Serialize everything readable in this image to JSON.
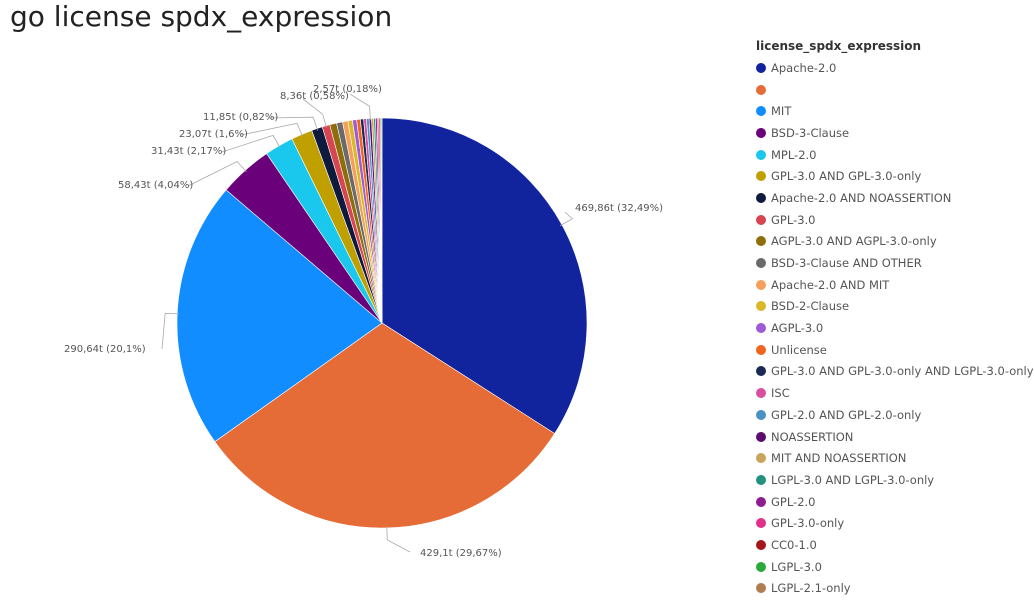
{
  "title": "go license spdx_expression",
  "chart_data": {
    "type": "pie",
    "legend_title": "license_spdx_expression",
    "legend_position": "right",
    "slices": [
      {
        "name": "Apache-2.0",
        "value": 469.86,
        "label": "469,86t (32,49%)",
        "color": "#12239E"
      },
      {
        "name": "",
        "value": 429.1,
        "label": "429,1t (29,67%)",
        "color": "#E66C37"
      },
      {
        "name": "MIT",
        "value": 290.64,
        "label": "290,64t (20,1%)",
        "color": "#118DFF"
      },
      {
        "name": "BSD-3-Clause",
        "value": 58.43,
        "label": "58,43t (4,04%)",
        "color": "#6B007B"
      },
      {
        "name": "MPL-2.0",
        "value": 31.43,
        "label": "31,43t (2,17%)",
        "color": "#1AC8EE"
      },
      {
        "name": "GPL-3.0 AND GPL-3.0-only",
        "value": 23.07,
        "label": "23,07t (1,6%)",
        "color": "#C0A000"
      },
      {
        "name": "Apache-2.0 AND NOASSERTION",
        "value": 11.85,
        "label": "11,85t (0,82%)",
        "color": "#0E1A3E"
      },
      {
        "name": "GPL-3.0",
        "value": 8.36,
        "label": "8,36t (0,58%)",
        "color": "#D64550"
      },
      {
        "name": "AGPL-3.0 AND AGPL-3.0-only",
        "value": 7.5,
        "label": "",
        "color": "#8D6E0B"
      },
      {
        "name": "BSD-3-Clause AND OTHER",
        "value": 6.5,
        "label": "",
        "color": "#6A6A6A"
      },
      {
        "name": "Apache-2.0 AND MIT",
        "value": 5.8,
        "label": "",
        "color": "#F5A05A"
      },
      {
        "name": "BSD-2-Clause",
        "value": 5.0,
        "label": "",
        "color": "#D9B82A"
      },
      {
        "name": "AGPL-3.0",
        "value": 4.5,
        "label": "",
        "color": "#9E5BD6"
      },
      {
        "name": "Unlicense",
        "value": 4.0,
        "label": "",
        "color": "#F0641E"
      },
      {
        "name": "GPL-3.0 AND GPL-3.0-only AND LGPL-3.0-only",
        "value": 3.5,
        "label": "",
        "color": "#1B2A55"
      },
      {
        "name": "ISC",
        "value": 3.1,
        "label": "",
        "color": "#D84FA0"
      },
      {
        "name": "GPL-2.0 AND GPL-2.0-only",
        "value": 2.8,
        "label": "",
        "color": "#4A90C2"
      },
      {
        "name": "NOASSERTION",
        "value": 2.57,
        "label": "2,57t (0,18%)",
        "color": "#5B0E6E"
      },
      {
        "name": "MIT AND NOASSERTION",
        "value": 2.3,
        "label": "",
        "color": "#C9A45C"
      },
      {
        "name": "LGPL-3.0 AND LGPL-3.0-only",
        "value": 2.0,
        "label": "",
        "color": "#21927F"
      },
      {
        "name": "GPL-2.0",
        "value": 1.8,
        "label": "",
        "color": "#8E1D8E"
      },
      {
        "name": "GPL-3.0-only",
        "value": 1.6,
        "label": "",
        "color": "#E0308A"
      },
      {
        "name": "CC0-1.0",
        "value": 1.4,
        "label": "",
        "color": "#A4161A"
      },
      {
        "name": "LGPL-3.0",
        "value": 1.2,
        "label": "",
        "color": "#2BAA3B"
      },
      {
        "name": "LGPL-2.1-only",
        "value": 1.0,
        "label": "",
        "color": "#B07D4F"
      }
    ]
  }
}
